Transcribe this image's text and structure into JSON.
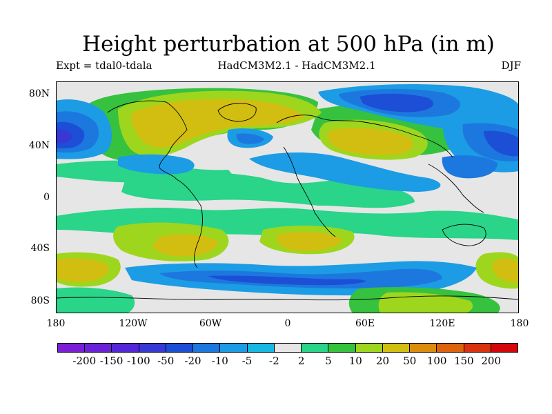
{
  "title": "Height perturbation at 500 hPa (in m)",
  "expt_label": "Expt = tdal0-tdala",
  "model_label": "HadCM3M2.1 - HadCM3M2.1",
  "season_label": "DJF",
  "lat_ticks": [
    "80N",
    "40N",
    "0",
    "40S",
    "80S"
  ],
  "lon_ticks": [
    "180",
    "120W",
    "60W",
    "0",
    "60E",
    "120E",
    "180"
  ],
  "colorbar": {
    "labels": [
      "-200",
      "-150",
      "-100",
      "-50",
      "-20",
      "-10",
      "-5",
      "-2",
      "2",
      "5",
      "10",
      "20",
      "50",
      "100",
      "150",
      "200"
    ],
    "colors": [
      "#7a1fd6",
      "#6a22d8",
      "#5326d6",
      "#3838d4",
      "#1c4fd6",
      "#1c78de",
      "#1c9ce4",
      "#16b8e2",
      "#e6e6e6",
      "#2ad488",
      "#36c23e",
      "#9ed61e",
      "#d2be10",
      "#dc8c0c",
      "#dc620c",
      "#d8320e",
      "#d4060c"
    ]
  }
}
